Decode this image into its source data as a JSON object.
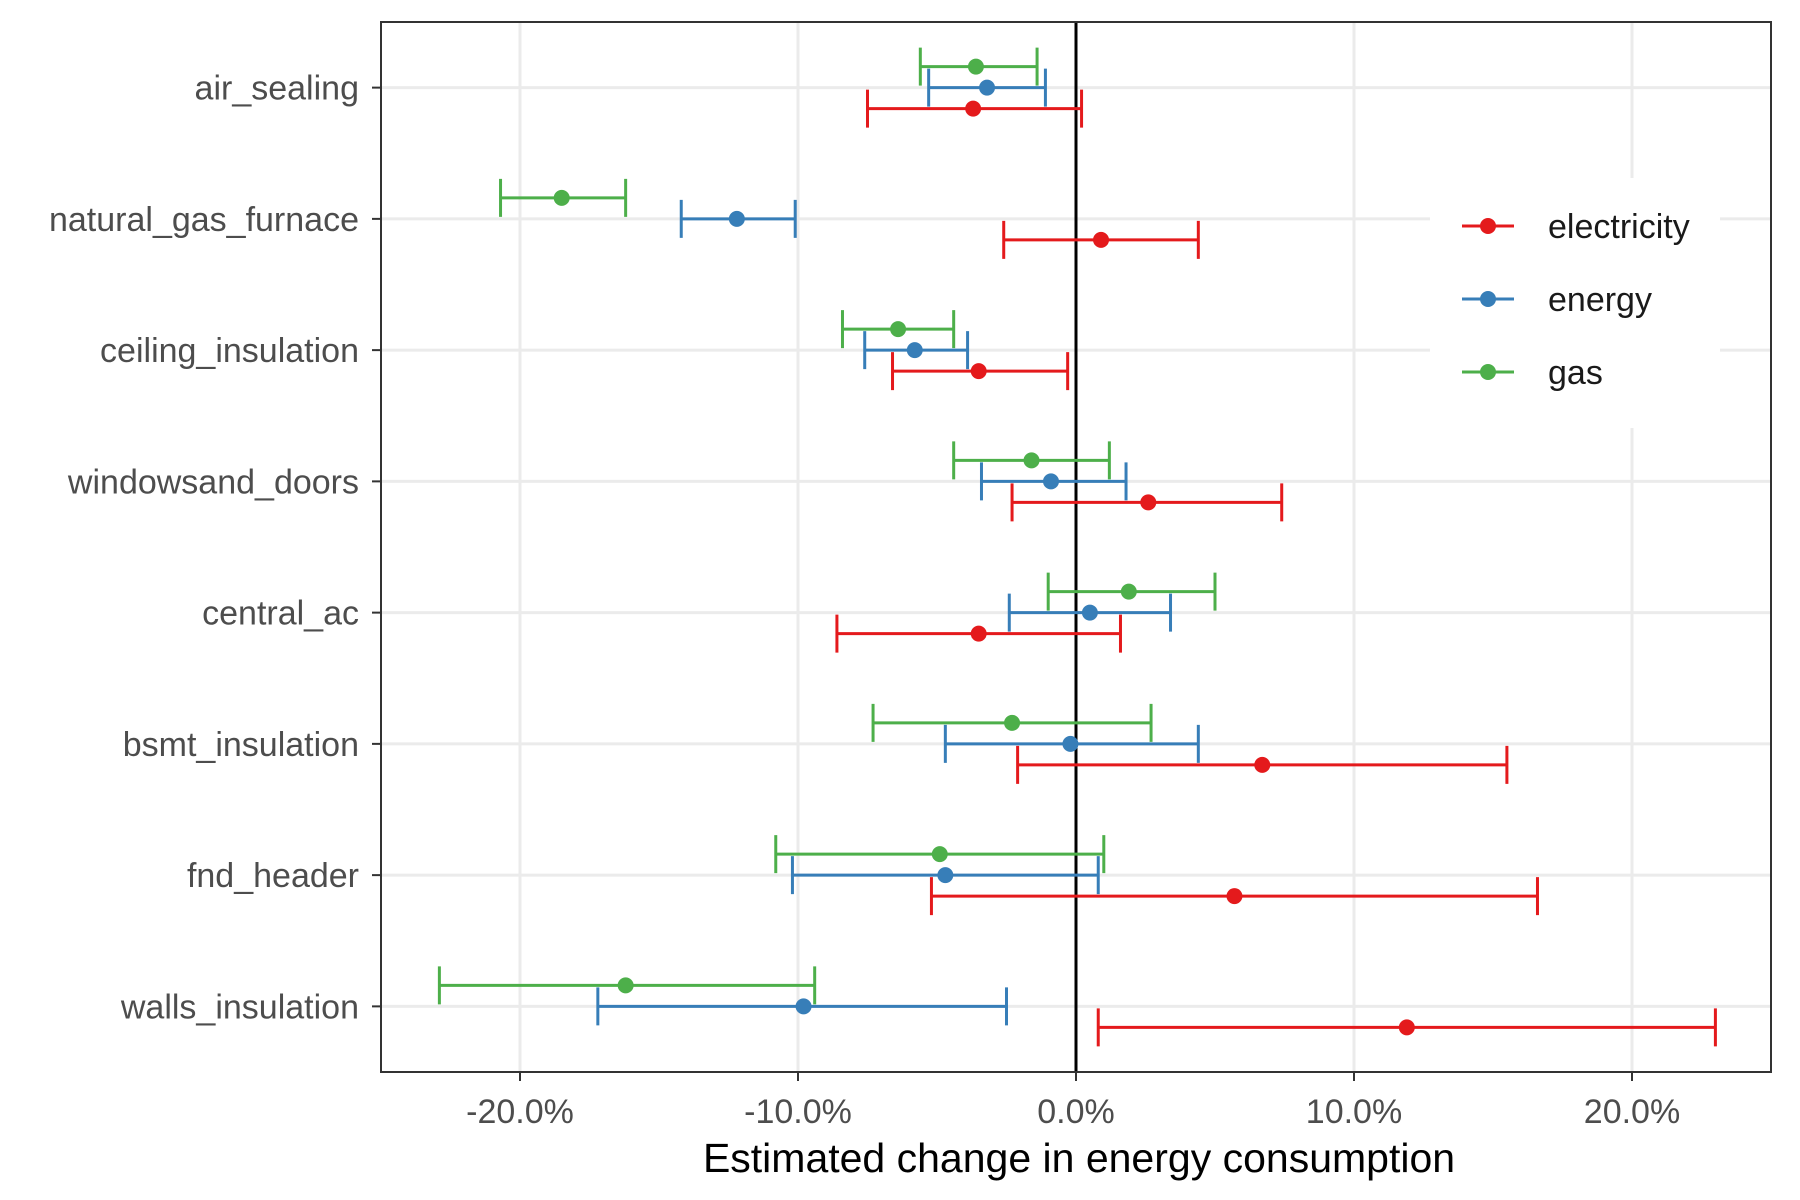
{
  "chart_data": {
    "type": "forest",
    "xlabel": "Estimated change in energy consumption",
    "ylabel": "",
    "xlim": [
      -25,
      25
    ],
    "x_ticks": [
      -20,
      -10,
      0,
      10,
      20
    ],
    "x_tick_labels": [
      "-20.0%",
      "-10.0%",
      "0.0%",
      "10.0%",
      "20.0%"
    ],
    "reference_line": 0,
    "grid": true,
    "legend_position": "right",
    "categories": [
      "air_sealing",
      "natural_gas_furnace",
      "ceiling_insulation",
      "windowsand_doors",
      "central_ac",
      "bsmt_insulation",
      "fnd_header",
      "walls_insulation"
    ],
    "series": [
      {
        "name": "electricity",
        "color": "#e41a1c",
        "estimates": [
          -3.7,
          0.9,
          -3.5,
          2.6,
          -3.5,
          6.7,
          5.7,
          11.9
        ],
        "lower": [
          -7.5,
          -2.6,
          -6.6,
          -2.3,
          -8.6,
          -2.1,
          -5.2,
          0.8
        ],
        "upper": [
          0.2,
          4.4,
          -0.3,
          7.4,
          1.6,
          15.5,
          16.6,
          23.0
        ]
      },
      {
        "name": "energy",
        "color": "#377eb8",
        "estimates": [
          -3.2,
          -12.2,
          -5.8,
          -0.9,
          0.5,
          -0.2,
          -4.7,
          -9.8
        ],
        "lower": [
          -5.3,
          -14.2,
          -7.6,
          -3.4,
          -2.4,
          -4.7,
          -10.2,
          -17.2
        ],
        "upper": [
          -1.1,
          -10.1,
          -3.9,
          1.8,
          3.4,
          4.4,
          0.8,
          -2.5
        ]
      },
      {
        "name": "gas",
        "color": "#4daf4a",
        "estimates": [
          -3.6,
          -18.5,
          -6.4,
          -1.6,
          1.9,
          -2.3,
          -4.9,
          -16.2
        ],
        "lower": [
          -5.6,
          -20.7,
          -8.4,
          -4.4,
          -1.0,
          -7.3,
          -10.8,
          -22.9
        ],
        "upper": [
          -1.4,
          -16.2,
          -4.4,
          1.2,
          5.0,
          2.7,
          1.0,
          -9.4
        ]
      }
    ]
  }
}
